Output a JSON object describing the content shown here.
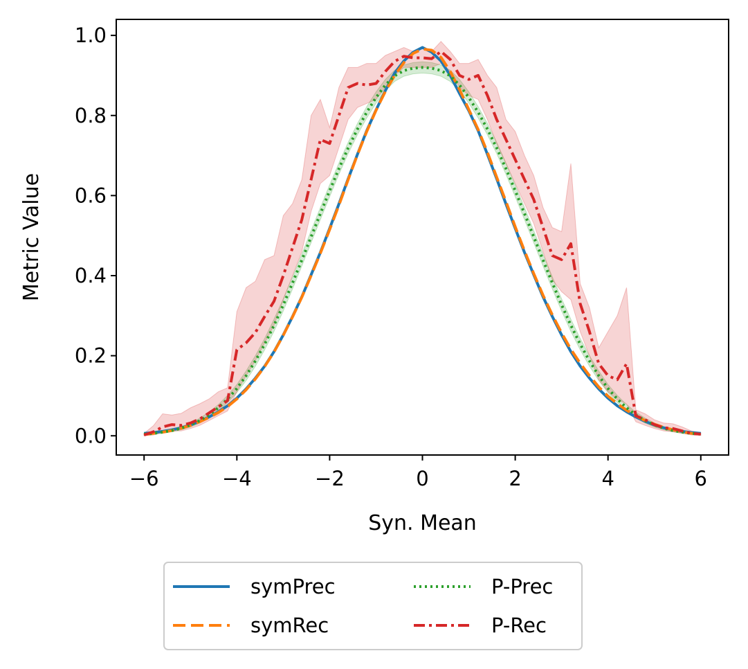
{
  "chart_data": {
    "type": "line",
    "title": "",
    "xlabel": "Syn. Mean",
    "ylabel": "Metric Value",
    "xlim": [
      -6.6,
      6.6
    ],
    "ylim": [
      -0.048,
      1.04
    ],
    "xticks": [
      -6,
      -4,
      -2,
      0,
      2,
      4,
      6
    ],
    "xtick_labels": [
      "−6",
      "−4",
      "−2",
      "0",
      "2",
      "4",
      "6"
    ],
    "yticks": [
      0.0,
      0.2,
      0.4,
      0.6,
      0.8,
      1.0
    ],
    "ytick_labels": [
      "0.0",
      "0.2",
      "0.4",
      "0.6",
      "0.8",
      "1.0"
    ],
    "grid": false,
    "legend_position": "below, centered, 2 columns",
    "x": [
      -6.0,
      -5.8,
      -5.6,
      -5.4,
      -5.2,
      -5.0,
      -4.8,
      -4.6,
      -4.4,
      -4.2,
      -4.0,
      -3.8,
      -3.6,
      -3.4,
      -3.2,
      -3.0,
      -2.8,
      -2.6,
      -2.4,
      -2.2,
      -2.0,
      -1.8,
      -1.6,
      -1.4,
      -1.2,
      -1.0,
      -0.8,
      -0.6,
      -0.4,
      -0.2,
      0.0,
      0.2,
      0.4,
      0.6,
      0.8,
      1.0,
      1.2,
      1.4,
      1.6,
      1.8,
      2.0,
      2.2,
      2.4,
      2.6,
      2.8,
      3.0,
      3.2,
      3.4,
      3.6,
      3.8,
      4.0,
      4.2,
      4.4,
      4.6,
      4.8,
      5.0,
      5.2,
      5.4,
      5.6,
      5.8,
      6.0
    ],
    "series": [
      {
        "name": "symPrec",
        "color": "#1f77b4",
        "dash": "solid",
        "values": [
          0.006,
          0.008,
          0.011,
          0.015,
          0.02,
          0.027,
          0.036,
          0.047,
          0.06,
          0.075,
          0.094,
          0.117,
          0.144,
          0.174,
          0.21,
          0.252,
          0.298,
          0.347,
          0.402,
          0.458,
          0.518,
          0.579,
          0.642,
          0.703,
          0.762,
          0.814,
          0.862,
          0.906,
          0.936,
          0.958,
          0.97,
          0.958,
          0.936,
          0.9,
          0.855,
          0.812,
          0.762,
          0.703,
          0.642,
          0.579,
          0.518,
          0.458,
          0.402,
          0.347,
          0.298,
          0.252,
          0.21,
          0.174,
          0.144,
          0.117,
          0.094,
          0.075,
          0.06,
          0.047,
          0.036,
          0.027,
          0.02,
          0.015,
          0.011,
          0.008,
          0.006
        ]
      },
      {
        "name": "symRec",
        "color": "#ff7f0e",
        "dash": "dashed",
        "values": [
          0.003,
          0.006,
          0.009,
          0.013,
          0.019,
          0.026,
          0.035,
          0.046,
          0.058,
          0.073,
          0.092,
          0.115,
          0.142,
          0.173,
          0.209,
          0.251,
          0.297,
          0.346,
          0.4,
          0.456,
          0.515,
          0.576,
          0.64,
          0.702,
          0.76,
          0.813,
          0.86,
          0.9,
          0.932,
          0.955,
          0.966,
          0.963,
          0.945,
          0.91,
          0.865,
          0.815,
          0.765,
          0.708,
          0.646,
          0.585,
          0.522,
          0.462,
          0.405,
          0.351,
          0.302,
          0.257,
          0.216,
          0.181,
          0.15,
          0.122,
          0.099,
          0.08,
          0.064,
          0.05,
          0.038,
          0.029,
          0.021,
          0.015,
          0.01,
          0.006,
          0.004
        ]
      },
      {
        "name": "P-Prec",
        "color": "#2ca02c",
        "dash": "dotted",
        "values": [
          0.004,
          0.006,
          0.009,
          0.013,
          0.019,
          0.027,
          0.038,
          0.052,
          0.07,
          0.092,
          0.118,
          0.15,
          0.187,
          0.229,
          0.276,
          0.327,
          0.382,
          0.439,
          0.497,
          0.555,
          0.612,
          0.667,
          0.719,
          0.766,
          0.808,
          0.845,
          0.876,
          0.899,
          0.912,
          0.918,
          0.92,
          0.918,
          0.912,
          0.899,
          0.876,
          0.845,
          0.808,
          0.766,
          0.719,
          0.667,
          0.612,
          0.555,
          0.497,
          0.439,
          0.382,
          0.327,
          0.276,
          0.229,
          0.187,
          0.15,
          0.118,
          0.092,
          0.07,
          0.052,
          0.038,
          0.027,
          0.019,
          0.013,
          0.009,
          0.006,
          0.004
        ],
        "band_low": [
          0.002,
          0.004,
          0.006,
          0.01,
          0.015,
          0.022,
          0.032,
          0.045,
          0.062,
          0.083,
          0.108,
          0.138,
          0.174,
          0.215,
          0.261,
          0.312,
          0.367,
          0.424,
          0.482,
          0.54,
          0.597,
          0.653,
          0.705,
          0.752,
          0.794,
          0.831,
          0.862,
          0.885,
          0.898,
          0.904,
          0.906,
          0.904,
          0.898,
          0.885,
          0.862,
          0.831,
          0.794,
          0.752,
          0.705,
          0.653,
          0.597,
          0.54,
          0.482,
          0.424,
          0.367,
          0.312,
          0.261,
          0.215,
          0.174,
          0.138,
          0.108,
          0.083,
          0.062,
          0.045,
          0.032,
          0.022,
          0.015,
          0.01,
          0.006,
          0.004,
          0.002
        ],
        "band_high": [
          0.006,
          0.008,
          0.012,
          0.016,
          0.023,
          0.032,
          0.044,
          0.059,
          0.078,
          0.101,
          0.128,
          0.162,
          0.2,
          0.243,
          0.291,
          0.342,
          0.397,
          0.454,
          0.512,
          0.57,
          0.627,
          0.681,
          0.733,
          0.78,
          0.822,
          0.859,
          0.89,
          0.913,
          0.926,
          0.932,
          0.934,
          0.932,
          0.926,
          0.913,
          0.89,
          0.859,
          0.822,
          0.78,
          0.733,
          0.681,
          0.627,
          0.57,
          0.512,
          0.454,
          0.397,
          0.342,
          0.291,
          0.243,
          0.2,
          0.162,
          0.128,
          0.101,
          0.078,
          0.059,
          0.044,
          0.032,
          0.023,
          0.016,
          0.012,
          0.008,
          0.006
        ]
      },
      {
        "name": "P-Rec",
        "color": "#d62728",
        "dash": "dashdot",
        "values": [
          0.002,
          0.01,
          0.022,
          0.028,
          0.026,
          0.032,
          0.042,
          0.057,
          0.072,
          0.088,
          0.215,
          0.232,
          0.258,
          0.298,
          0.336,
          0.4,
          0.47,
          0.54,
          0.64,
          0.74,
          0.73,
          0.8,
          0.87,
          0.88,
          0.876,
          0.88,
          0.91,
          0.935,
          0.948,
          0.944,
          0.944,
          0.942,
          0.96,
          0.94,
          0.9,
          0.89,
          0.9,
          0.85,
          0.79,
          0.74,
          0.69,
          0.64,
          0.59,
          0.52,
          0.45,
          0.44,
          0.48,
          0.33,
          0.26,
          0.18,
          0.15,
          0.14,
          0.18,
          0.05,
          0.04,
          0.028,
          0.02,
          0.018,
          0.012,
          0.006,
          0.004
        ],
        "band_low": [
          0.0,
          0.002,
          0.008,
          0.012,
          0.012,
          0.018,
          0.026,
          0.038,
          0.05,
          0.062,
          0.11,
          0.15,
          0.188,
          0.232,
          0.276,
          0.34,
          0.4,
          0.46,
          0.56,
          0.63,
          0.65,
          0.72,
          0.79,
          0.82,
          0.83,
          0.84,
          0.87,
          0.9,
          0.92,
          0.92,
          0.92,
          0.92,
          0.93,
          0.91,
          0.87,
          0.85,
          0.84,
          0.79,
          0.73,
          0.68,
          0.63,
          0.58,
          0.53,
          0.46,
          0.39,
          0.36,
          0.34,
          0.26,
          0.2,
          0.14,
          0.11,
          0.09,
          0.08,
          0.035,
          0.026,
          0.018,
          0.012,
          0.01,
          0.006,
          0.002,
          0.001
        ],
        "band_high": [
          0.006,
          0.025,
          0.055,
          0.052,
          0.056,
          0.07,
          0.08,
          0.092,
          0.11,
          0.12,
          0.31,
          0.37,
          0.386,
          0.44,
          0.45,
          0.55,
          0.58,
          0.64,
          0.8,
          0.84,
          0.77,
          0.87,
          0.92,
          0.92,
          0.93,
          0.93,
          0.95,
          0.96,
          0.97,
          0.96,
          0.97,
          0.96,
          0.985,
          0.96,
          0.93,
          0.93,
          0.94,
          0.9,
          0.87,
          0.79,
          0.76,
          0.7,
          0.65,
          0.57,
          0.52,
          0.51,
          0.68,
          0.38,
          0.32,
          0.22,
          0.26,
          0.3,
          0.37,
          0.065,
          0.055,
          0.04,
          0.032,
          0.03,
          0.022,
          0.012,
          0.008
        ]
      }
    ]
  }
}
